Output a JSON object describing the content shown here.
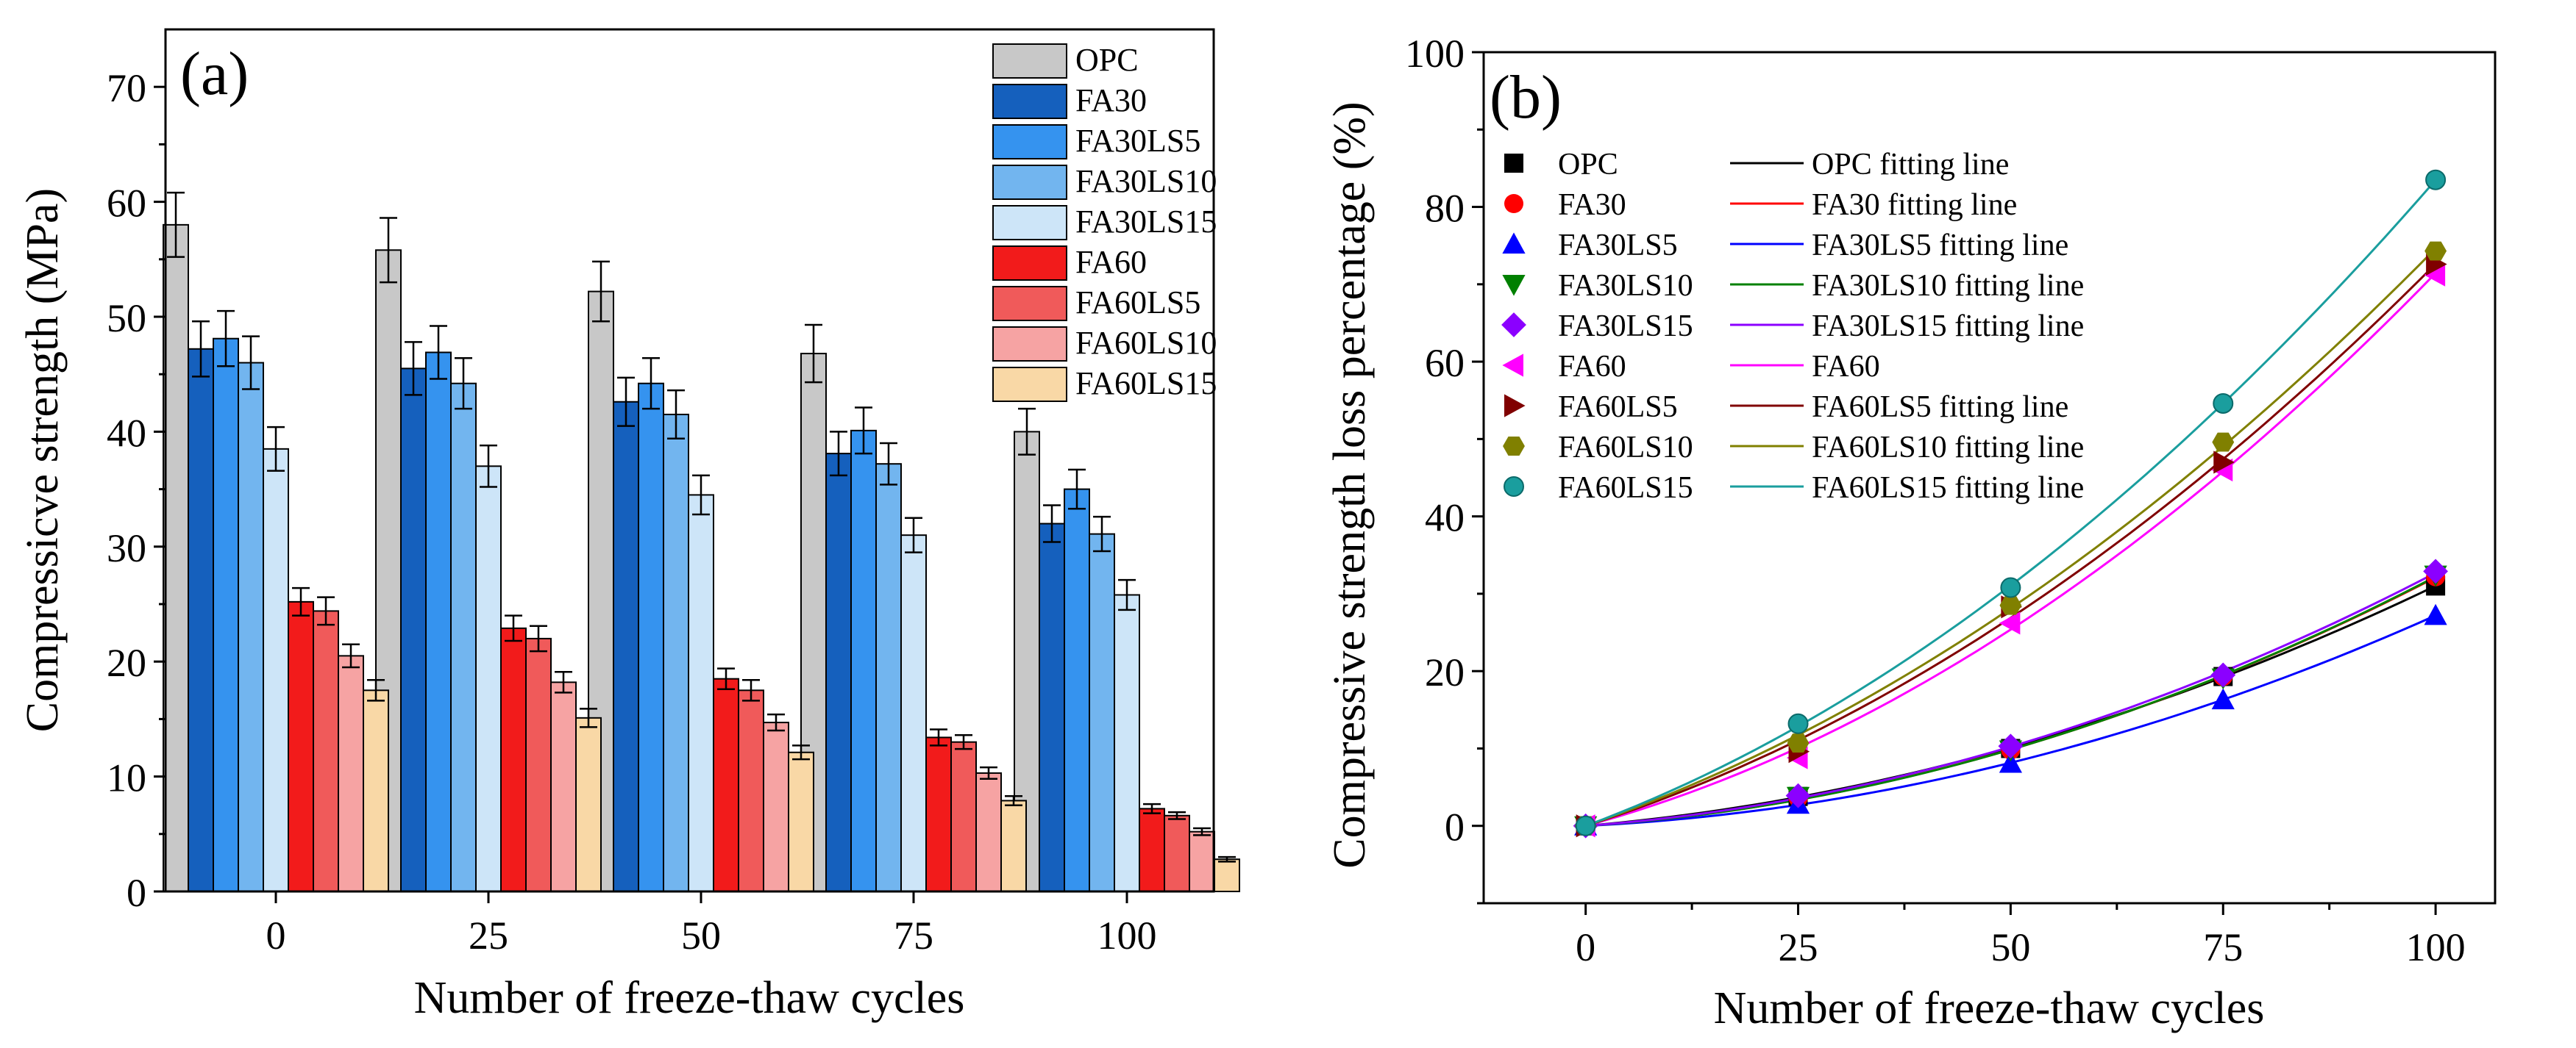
{
  "chart_data": [
    {
      "panel": "(a)",
      "type": "bar",
      "xlabel": "Number of freeze-thaw cycles",
      "ylabel": "Compressicve strength (MPa)",
      "categories": [
        "0",
        "25",
        "50",
        "75",
        "100"
      ],
      "ylim": [
        0,
        75
      ],
      "yticks": [
        0,
        10,
        20,
        30,
        40,
        50,
        60,
        70
      ],
      "legend_position": "top-right",
      "series": [
        {
          "name": "OPC",
          "color": "#c8c8c8",
          "values": [
            58.0,
            55.8,
            52.2,
            46.8,
            40.0
          ],
          "errors": [
            2.8,
            2.8,
            2.6,
            2.5,
            2.0
          ]
        },
        {
          "name": "FA30",
          "color": "#1560bd",
          "values": [
            47.2,
            45.5,
            42.6,
            38.1,
            32.0
          ],
          "errors": [
            2.4,
            2.3,
            2.1,
            1.9,
            1.6
          ]
        },
        {
          "name": "FA30LS5",
          "color": "#3593ef",
          "values": [
            48.1,
            46.9,
            44.2,
            40.1,
            35.0
          ],
          "errors": [
            2.4,
            2.3,
            2.2,
            2.0,
            1.7
          ]
        },
        {
          "name": "FA30LS10",
          "color": "#72b5ef",
          "values": [
            46.0,
            44.2,
            41.5,
            37.2,
            31.1
          ],
          "errors": [
            2.3,
            2.2,
            2.1,
            1.8,
            1.5
          ]
        },
        {
          "name": "FA30LS15",
          "color": "#cde5f8",
          "values": [
            38.5,
            37.0,
            34.5,
            31.0,
            25.8
          ],
          "errors": [
            1.9,
            1.8,
            1.7,
            1.5,
            1.3
          ]
        },
        {
          "name": "FA60",
          "color": "#f21b1b",
          "values": [
            25.2,
            22.9,
            18.5,
            13.4,
            7.2
          ],
          "errors": [
            1.2,
            1.1,
            0.9,
            0.7,
            0.4
          ]
        },
        {
          "name": "FA60LS5",
          "color": "#f05a5a",
          "values": [
            24.4,
            22.0,
            17.5,
            13.0,
            6.6
          ],
          "errors": [
            1.2,
            1.1,
            0.9,
            0.6,
            0.3
          ]
        },
        {
          "name": "FA60LS10",
          "color": "#f6a3a3",
          "values": [
            20.5,
            18.2,
            14.7,
            10.3,
            5.2
          ],
          "errors": [
            1.0,
            0.9,
            0.7,
            0.5,
            0.3
          ]
        },
        {
          "name": "FA60LS15",
          "color": "#f9d8a6",
          "values": [
            17.5,
            15.1,
            12.1,
            7.9,
            2.8
          ],
          "errors": [
            0.9,
            0.8,
            0.6,
            0.4,
            0.2
          ]
        }
      ]
    },
    {
      "panel": "(b)",
      "type": "scatter",
      "xlabel": "Number of freeze-thaw cycles",
      "ylabel": "Compressive strength loss percentage (%)",
      "x": [
        0,
        25,
        50,
        75,
        100
      ],
      "xlim": [
        -12,
        107
      ],
      "ylim": [
        -10,
        100
      ],
      "xticks": [
        0,
        25,
        50,
        75,
        100
      ],
      "yticks": [
        0,
        20,
        40,
        60,
        80,
        100
      ],
      "legend_position": "top-left",
      "series": [
        {
          "name": "OPC",
          "fit_label": "OPC fitting line",
          "marker": "square",
          "color": "#000000",
          "fit_color": "#000000",
          "values": [
            0,
            3.8,
            10.0,
            19.3,
            31.0
          ]
        },
        {
          "name": "FA30",
          "fit_label": "FA30 fitting line",
          "marker": "circle",
          "color": "#ff0000",
          "fit_color": "#ff0000",
          "values": [
            0,
            3.6,
            9.8,
            19.3,
            32.2
          ]
        },
        {
          "name": "FA30LS5",
          "fit_label": "FA30LS5 fitting line",
          "marker": "triangle-up",
          "color": "#0000ff",
          "fit_color": "#0000ff",
          "values": [
            0,
            2.8,
            8.1,
            16.3,
            27.2
          ]
        },
        {
          "name": "FA30LS10",
          "fit_label": "FA30LS10 fitting line",
          "marker": "triangle-down",
          "color": "#008000",
          "fit_color": "#008000",
          "values": [
            0,
            3.8,
            9.8,
            19.1,
            32.4
          ]
        },
        {
          "name": "FA30LS15",
          "fit_label": "FA30LS15 fitting line",
          "marker": "diamond",
          "color": "#8b00ff",
          "fit_color": "#8b00ff",
          "values": [
            0,
            3.9,
            10.3,
            19.5,
            32.9
          ]
        },
        {
          "name": "FA60",
          "fit_label": "FA60",
          "marker": "triangle-left",
          "color": "#ff00ff",
          "fit_color": "#ff00ff",
          "values": [
            0,
            8.8,
            26.2,
            46.0,
            71.2
          ]
        },
        {
          "name": "FA60LS5",
          "fit_label": "FA60LS5 fitting line",
          "marker": "triangle-right",
          "color": "#800000",
          "fit_color": "#800000",
          "values": [
            0,
            9.6,
            28.3,
            47.0,
            72.6
          ]
        },
        {
          "name": "FA60LS10",
          "fit_label": "FA60LS10 fitting line",
          "marker": "hexagon",
          "color": "#808000",
          "fit_color": "#808000",
          "values": [
            0,
            10.7,
            28.5,
            49.6,
            74.3
          ]
        },
        {
          "name": "FA60LS15",
          "fit_label": "FA60LS15 fitting line",
          "marker": "sphere",
          "color": "#1a9e9e",
          "fit_color": "#1a9e9e",
          "values": [
            0,
            13.2,
            30.8,
            54.6,
            83.5
          ]
        }
      ]
    }
  ]
}
